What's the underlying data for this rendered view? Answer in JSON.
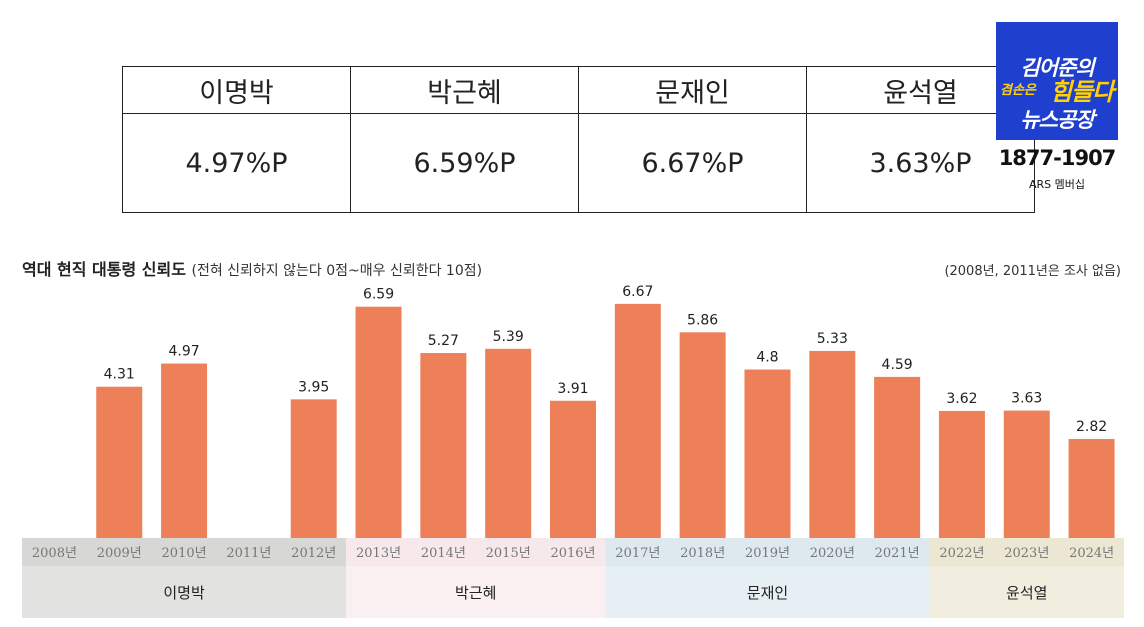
{
  "summary_table": {
    "headers": [
      "이명박",
      "박근혜",
      "문재인",
      "윤석열"
    ],
    "values": [
      "4.97%P",
      "6.59%P",
      "6.67%P",
      "3.63%P"
    ]
  },
  "logo": {
    "line1": "김어준의",
    "line2a": "겸손은",
    "line2b": "힘들다",
    "line3": "뉴스공장",
    "years": "1877-1907",
    "ars": "ARS 멤버십",
    "color": "#1f3fcf"
  },
  "chart_heading": {
    "title": "역대 현직 대통령 신뢰도",
    "subtitle": "(전혀 신뢰하지 않는다 0점~매우 신뢰한다 10점)",
    "note": "(2008년, 2011년은 조사 없음)"
  },
  "chart_data": {
    "type": "bar",
    "categories": [
      "2008년",
      "2009년",
      "2010년",
      "2011년",
      "2012년",
      "2013년",
      "2014년",
      "2015년",
      "2016년",
      "2017년",
      "2018년",
      "2019년",
      "2020년",
      "2021년",
      "2022년",
      "2023년",
      "2024년"
    ],
    "values": [
      null,
      4.31,
      4.97,
      null,
      3.95,
      6.59,
      5.27,
      5.39,
      3.91,
      6.67,
      5.86,
      4.8,
      5.33,
      4.59,
      3.62,
      3.63,
      2.82
    ],
    "value_labels": [
      "",
      "4.31",
      "4.97",
      "",
      "3.95",
      "6.59",
      "5.27",
      "5.39",
      "3.91",
      "6.67",
      "5.86",
      "4.8",
      "5.33",
      "4.59",
      "3.62",
      "3.63",
      "2.82"
    ],
    "bar_color": "#ee8059",
    "groups": [
      {
        "name": "이명박",
        "start": 0,
        "end": 4,
        "band_color": "#d7d7d5",
        "label_color": "#e2e2e0"
      },
      {
        "name": "박근혜",
        "start": 5,
        "end": 8,
        "band_color": "#f6e8eb",
        "label_color": "#faeff1"
      },
      {
        "name": "문재인",
        "start": 9,
        "end": 13,
        "band_color": "#dde9ef",
        "label_color": "#e6eff3"
      },
      {
        "name": "윤석열",
        "start": 14,
        "end": 16,
        "band_color": "#ece7d3",
        "label_color": "#f2eedf"
      }
    ],
    "ylim": [
      0,
      7
    ],
    "grid": false
  }
}
